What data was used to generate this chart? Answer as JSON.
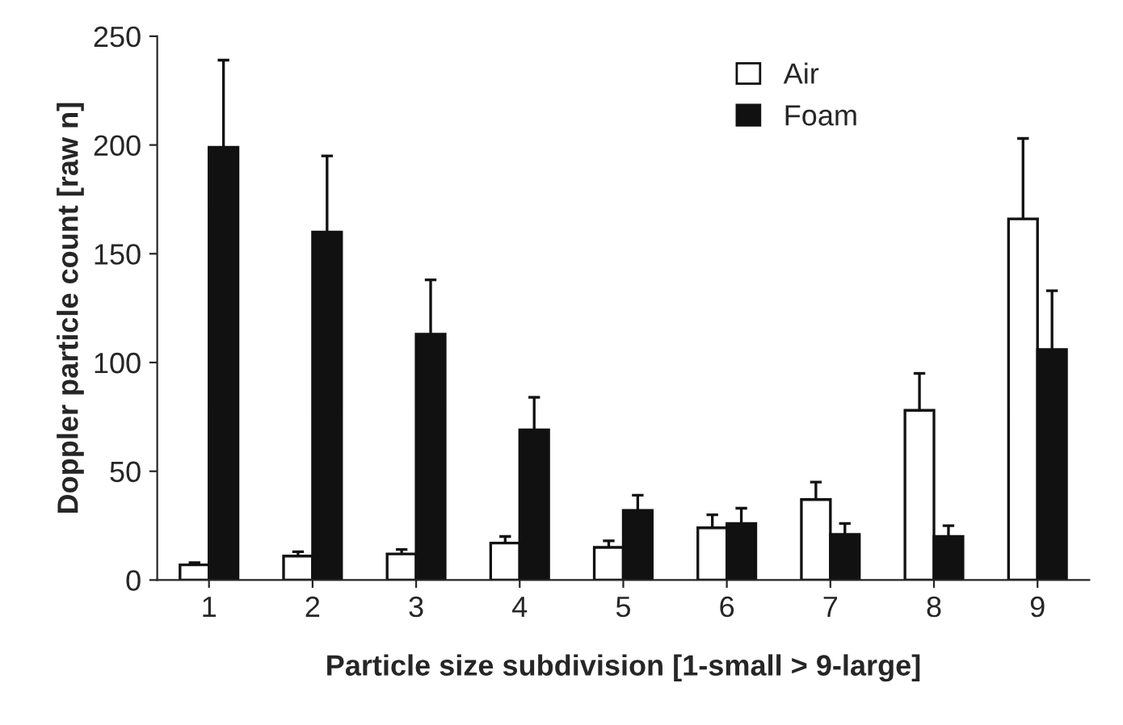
{
  "chart_data": {
    "type": "bar",
    "xlabel": "Particle size subdivision [1-small > 9-large]",
    "ylabel": "Doppler particle count [raw n]",
    "categories": [
      "1",
      "2",
      "3",
      "4",
      "5",
      "6",
      "7",
      "8",
      "9"
    ],
    "series": [
      {
        "name": "Air",
        "color": "#ffffff",
        "values": [
          7,
          11,
          12,
          17,
          15,
          24,
          37,
          78,
          166
        ],
        "errors": [
          1,
          2,
          2,
          3,
          3,
          6,
          8,
          17,
          37
        ]
      },
      {
        "name": "Foam",
        "color": "#111111",
        "values": [
          199,
          160,
          113,
          69,
          32,
          26,
          21,
          20,
          106
        ],
        "errors": [
          40,
          35,
          25,
          15,
          7,
          7,
          5,
          5,
          27
        ]
      }
    ],
    "ylim": [
      0,
      250
    ],
    "yticks": [
      0,
      50,
      100,
      150,
      200,
      250
    ],
    "grid": false,
    "legend": "top right"
  }
}
